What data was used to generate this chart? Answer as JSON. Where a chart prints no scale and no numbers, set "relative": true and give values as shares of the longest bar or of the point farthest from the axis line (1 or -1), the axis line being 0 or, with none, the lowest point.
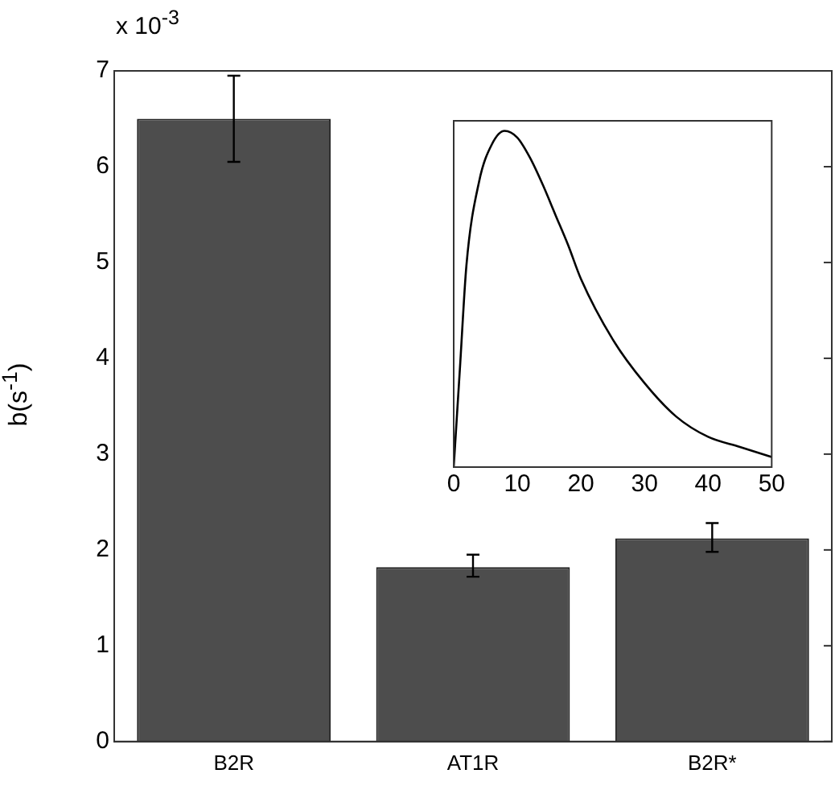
{
  "chart_data": [
    {
      "type": "bar",
      "ylabel": "b(s$^{-1}$)",
      "annotations": [
        "x 10$^{-3}$"
      ],
      "categories": [
        "B2R",
        "AT1R",
        "B2R*"
      ],
      "values": [
        6.5,
        1.82,
        2.12
      ],
      "errors": [
        [
          6.05,
          6.95
        ],
        [
          1.72,
          1.95
        ],
        [
          1.98,
          2.28
        ]
      ],
      "color": "#4d4d4d",
      "ylim": [
        0,
        7
      ],
      "yticks": [
        0,
        1,
        2,
        3,
        4,
        5,
        6,
        7
      ],
      "grid": false,
      "legend": false
    },
    {
      "type": "line",
      "relative": true,
      "x": [
        0,
        1,
        2,
        4,
        6,
        8,
        10,
        12,
        14,
        16,
        18,
        20,
        25,
        30,
        35,
        40,
        45,
        50
      ],
      "series": [
        {
          "color": "#000000",
          "values": [
            0,
            0.3,
            0.6,
            0.85,
            0.96,
            1,
            0.98,
            0.92,
            0.84,
            0.75,
            0.66,
            0.56,
            0.38,
            0.25,
            0.15,
            0.09,
            0.06,
            0.03
          ]
        }
      ],
      "xlim": [
        0,
        50
      ],
      "xticks": [
        0,
        10,
        20,
        30,
        40,
        50
      ],
      "tick_labels": "x",
      "grid": false,
      "legend": false,
      "marker": "none",
      "line_style": "solid"
    }
  ]
}
